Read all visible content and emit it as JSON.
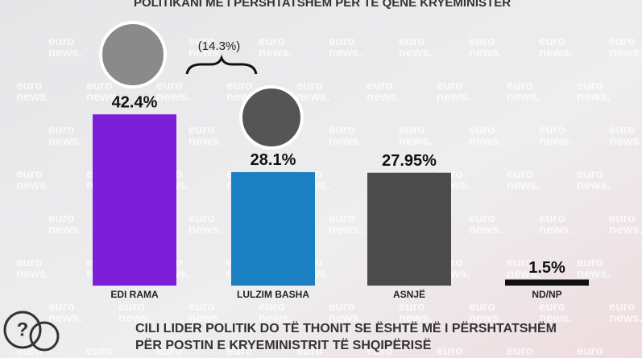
{
  "chart_data": {
    "type": "bar",
    "title": "POLITIKANI MË I PËRSHTATSHËM PËR TË QENË KRYEMINISTER",
    "annotation": "(14.3%)",
    "question": [
      "CILI LIDER POLITIK DO TË THONIT SE ËSHTË MË I PËRSHTATSHËM",
      "PËR POSTIN E KRYEMINISTRIT TË SHQIPËRISË"
    ],
    "watermark": [
      "euro",
      "news."
    ],
    "categories": [
      "EDI RAMA",
      "LULZIM BASHA",
      "ASNJË",
      "ND/NP"
    ],
    "values": [
      42.4,
      28.1,
      27.95,
      1.5
    ],
    "value_labels": [
      "42.4%",
      "28.1%",
      "27.95%",
      "1.5%"
    ],
    "colors": [
      "#7b1fd8",
      "#1b80c2",
      "#4b4b4b",
      "#111111"
    ]
  }
}
